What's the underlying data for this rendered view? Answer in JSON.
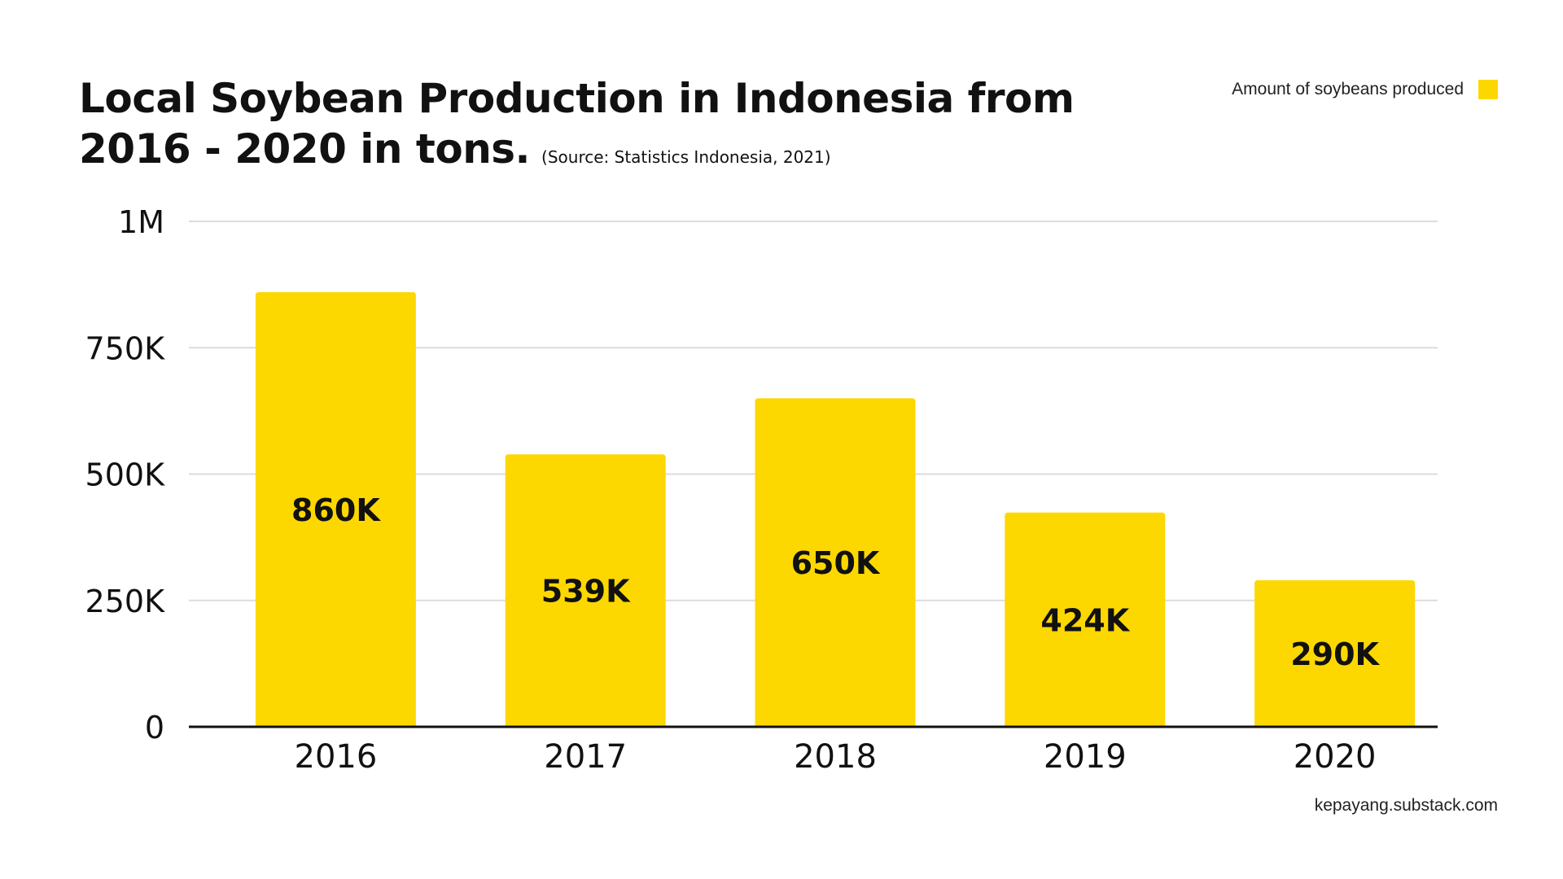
{
  "title": {
    "line1": "Local Soybean Production in Indonesia from",
    "line2": "2016 - 2020 in tons.",
    "source": "(Source: Statistics Indonesia, 2021)"
  },
  "legend": {
    "label": "Amount of soybeans produced"
  },
  "footer": {
    "credit": "kepayang.substack.com"
  },
  "colors": {
    "bar": "#FDD700",
    "grid": "#DCDCDC",
    "axis": "#111111",
    "text": "#111111"
  },
  "chart_data": {
    "type": "bar",
    "title": "Local Soybean Production in Indonesia from 2016 - 2020 in tons.",
    "categories": [
      "2016",
      "2017",
      "2018",
      "2019",
      "2020"
    ],
    "series": [
      {
        "name": "Amount of soybeans produced",
        "values": [
          860000,
          539000,
          650000,
          424000,
          290000
        ]
      }
    ],
    "data_labels": [
      "860K",
      "539K",
      "650K",
      "424K",
      "290K"
    ],
    "ylim": [
      0,
      1000000
    ],
    "yticks": [
      0,
      250000,
      500000,
      750000,
      1000000
    ],
    "ytick_labels": [
      "0",
      "250K",
      "500K",
      "750K",
      "1M"
    ],
    "grid": true,
    "legend_position": "top-right"
  }
}
